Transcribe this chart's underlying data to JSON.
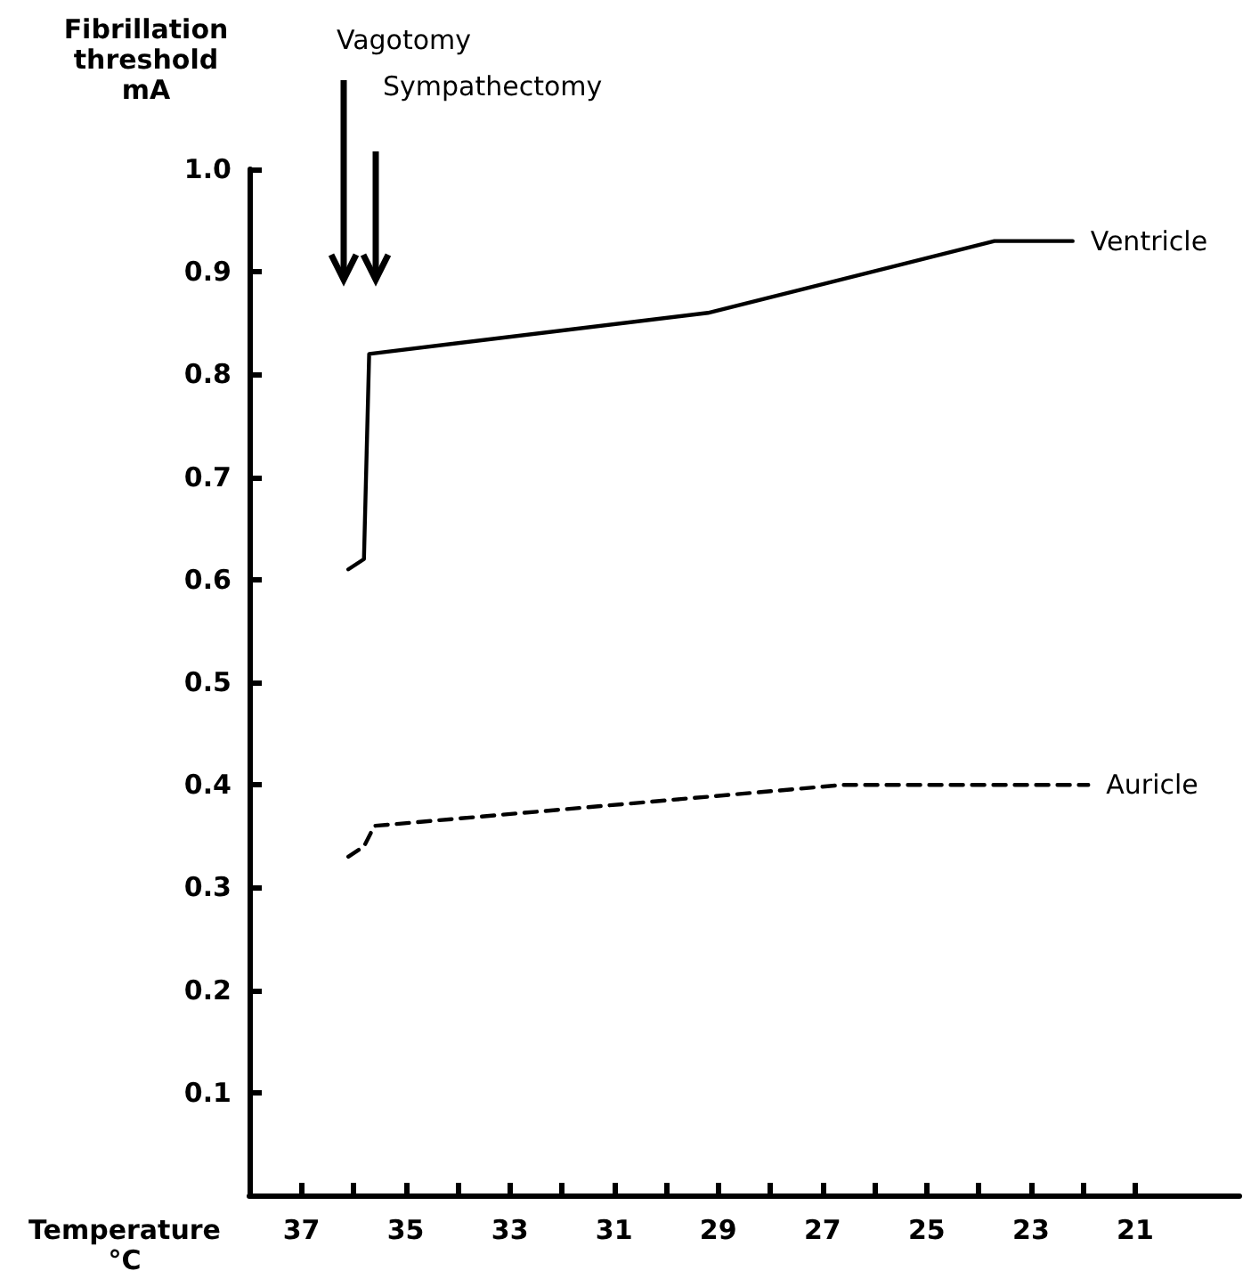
{
  "chart_data": {
    "type": "line",
    "xlabel": "Temperature °C",
    "ylabel": "Fibrillation threshold mA",
    "series": [
      {
        "name": "Ventricle",
        "color": "#000000",
        "line_style": "solid",
        "x": [
          36.1,
          35.8,
          35.7,
          29.2,
          23.7,
          22.2
        ],
        "values": [
          0.61,
          0.62,
          0.82,
          0.86,
          0.93,
          0.93
        ]
      },
      {
        "name": "Auricle",
        "color": "#000000",
        "line_style": "dashed",
        "x": [
          36.1,
          35.8,
          35.6,
          26.6,
          21.9
        ],
        "values": [
          0.33,
          0.34,
          0.36,
          0.4,
          0.4
        ]
      }
    ],
    "xlim": [
      38,
      19
    ],
    "xticks": [
      37,
      {
        "value": 36,
        "label": null
      },
      35,
      {
        "value": 34,
        "label": null
      },
      33,
      {
        "value": 32,
        "label": null
      },
      31,
      {
        "value": 30,
        "label": null
      },
      29,
      {
        "value": 28,
        "label": null
      },
      27,
      {
        "value": 26,
        "label": null
      },
      25,
      {
        "value": 24,
        "label": null
      },
      23,
      {
        "value": 22,
        "label": null
      },
      21
    ],
    "ylim": [
      0,
      1.0
    ],
    "yticks": [
      0.1,
      0.2,
      0.3,
      0.4,
      0.5,
      0.6,
      0.7,
      0.8,
      0.9,
      {
        "value": 1.0,
        "label": "1.0"
      }
    ],
    "annotations": [
      "Vagotomy",
      "Sympathectomy"
    ],
    "grid": false,
    "legend": false,
    "marker": "none"
  }
}
